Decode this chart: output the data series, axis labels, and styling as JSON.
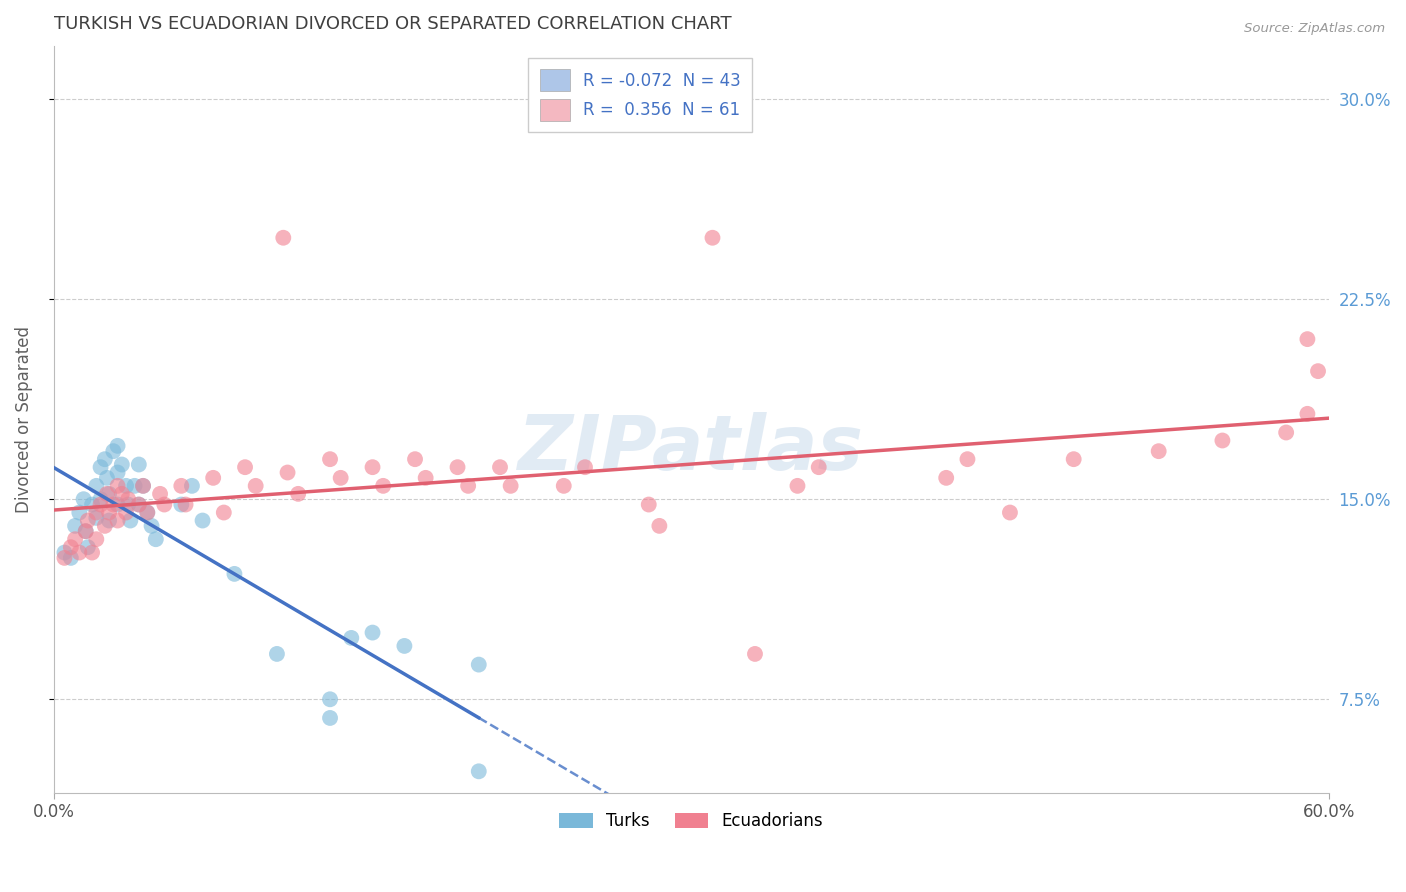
{
  "title": "TURKISH VS ECUADORIAN DIVORCED OR SEPARATED CORRELATION CHART",
  "source": "Source: ZipAtlas.com",
  "ylabel": "Divorced or Separated",
  "ytick_labels": [
    "7.5%",
    "15.0%",
    "22.5%",
    "30.0%"
  ],
  "ytick_values": [
    0.075,
    0.15,
    0.225,
    0.3
  ],
  "xlim": [
    0.0,
    0.6
  ],
  "ylim": [
    0.04,
    0.32
  ],
  "watermark": "ZIPatlas",
  "legend_entries": [
    {
      "label": "R = -0.072  N = 43",
      "facecolor": "#aec6e8"
    },
    {
      "label": "R =  0.356  N = 61",
      "facecolor": "#f4b8c1"
    }
  ],
  "turkish_color": "#7ab8d9",
  "ecuadorian_color": "#f08090",
  "turkish_line_color": "#4472c4",
  "ecuadorian_line_color": "#e06070",
  "background_color": "#ffffff",
  "grid_color": "#c8c8c8",
  "title_color": "#404040",
  "ylabel_color": "#606060",
  "tick_color_right": "#5b9bd5",
  "turkish_points": [
    [
      0.005,
      0.13
    ],
    [
      0.008,
      0.128
    ],
    [
      0.01,
      0.14
    ],
    [
      0.012,
      0.145
    ],
    [
      0.014,
      0.15
    ],
    [
      0.015,
      0.138
    ],
    [
      0.016,
      0.132
    ],
    [
      0.018,
      0.148
    ],
    [
      0.02,
      0.155
    ],
    [
      0.02,
      0.143
    ],
    [
      0.022,
      0.162
    ],
    [
      0.022,
      0.15
    ],
    [
      0.024,
      0.165
    ],
    [
      0.025,
      0.158
    ],
    [
      0.026,
      0.152
    ],
    [
      0.026,
      0.142
    ],
    [
      0.028,
      0.168
    ],
    [
      0.03,
      0.17
    ],
    [
      0.03,
      0.16
    ],
    [
      0.03,
      0.148
    ],
    [
      0.032,
      0.163
    ],
    [
      0.034,
      0.155
    ],
    [
      0.035,
      0.148
    ],
    [
      0.036,
      0.142
    ],
    [
      0.038,
      0.155
    ],
    [
      0.04,
      0.163
    ],
    [
      0.04,
      0.148
    ],
    [
      0.042,
      0.155
    ],
    [
      0.044,
      0.145
    ],
    [
      0.046,
      0.14
    ],
    [
      0.048,
      0.135
    ],
    [
      0.06,
      0.148
    ],
    [
      0.065,
      0.155
    ],
    [
      0.07,
      0.142
    ],
    [
      0.085,
      0.122
    ],
    [
      0.14,
      0.098
    ],
    [
      0.15,
      0.1
    ],
    [
      0.165,
      0.095
    ],
    [
      0.105,
      0.092
    ],
    [
      0.2,
      0.088
    ],
    [
      0.13,
      0.075
    ],
    [
      0.13,
      0.068
    ],
    [
      0.2,
      0.048
    ]
  ],
  "ecuadorian_points": [
    [
      0.005,
      0.128
    ],
    [
      0.008,
      0.132
    ],
    [
      0.01,
      0.135
    ],
    [
      0.012,
      0.13
    ],
    [
      0.015,
      0.138
    ],
    [
      0.016,
      0.142
    ],
    [
      0.018,
      0.13
    ],
    [
      0.02,
      0.145
    ],
    [
      0.02,
      0.135
    ],
    [
      0.022,
      0.148
    ],
    [
      0.024,
      0.14
    ],
    [
      0.025,
      0.152
    ],
    [
      0.026,
      0.145
    ],
    [
      0.028,
      0.148
    ],
    [
      0.03,
      0.155
    ],
    [
      0.03,
      0.142
    ],
    [
      0.032,
      0.152
    ],
    [
      0.034,
      0.145
    ],
    [
      0.035,
      0.15
    ],
    [
      0.04,
      0.148
    ],
    [
      0.042,
      0.155
    ],
    [
      0.044,
      0.145
    ],
    [
      0.05,
      0.152
    ],
    [
      0.052,
      0.148
    ],
    [
      0.06,
      0.155
    ],
    [
      0.062,
      0.148
    ],
    [
      0.075,
      0.158
    ],
    [
      0.08,
      0.145
    ],
    [
      0.09,
      0.162
    ],
    [
      0.095,
      0.155
    ],
    [
      0.11,
      0.16
    ],
    [
      0.115,
      0.152
    ],
    [
      0.13,
      0.165
    ],
    [
      0.135,
      0.158
    ],
    [
      0.15,
      0.162
    ],
    [
      0.155,
      0.155
    ],
    [
      0.17,
      0.165
    ],
    [
      0.175,
      0.158
    ],
    [
      0.19,
      0.162
    ],
    [
      0.195,
      0.155
    ],
    [
      0.21,
      0.162
    ],
    [
      0.215,
      0.155
    ],
    [
      0.24,
      0.155
    ],
    [
      0.25,
      0.162
    ],
    [
      0.28,
      0.148
    ],
    [
      0.285,
      0.14
    ],
    [
      0.35,
      0.155
    ],
    [
      0.36,
      0.162
    ],
    [
      0.42,
      0.158
    ],
    [
      0.43,
      0.165
    ],
    [
      0.45,
      0.145
    ],
    [
      0.48,
      0.165
    ],
    [
      0.52,
      0.168
    ],
    [
      0.55,
      0.172
    ],
    [
      0.58,
      0.175
    ],
    [
      0.59,
      0.182
    ],
    [
      0.33,
      0.092
    ],
    [
      0.595,
      0.198
    ],
    [
      0.108,
      0.248
    ],
    [
      0.31,
      0.248
    ],
    [
      0.59,
      0.21
    ]
  ]
}
